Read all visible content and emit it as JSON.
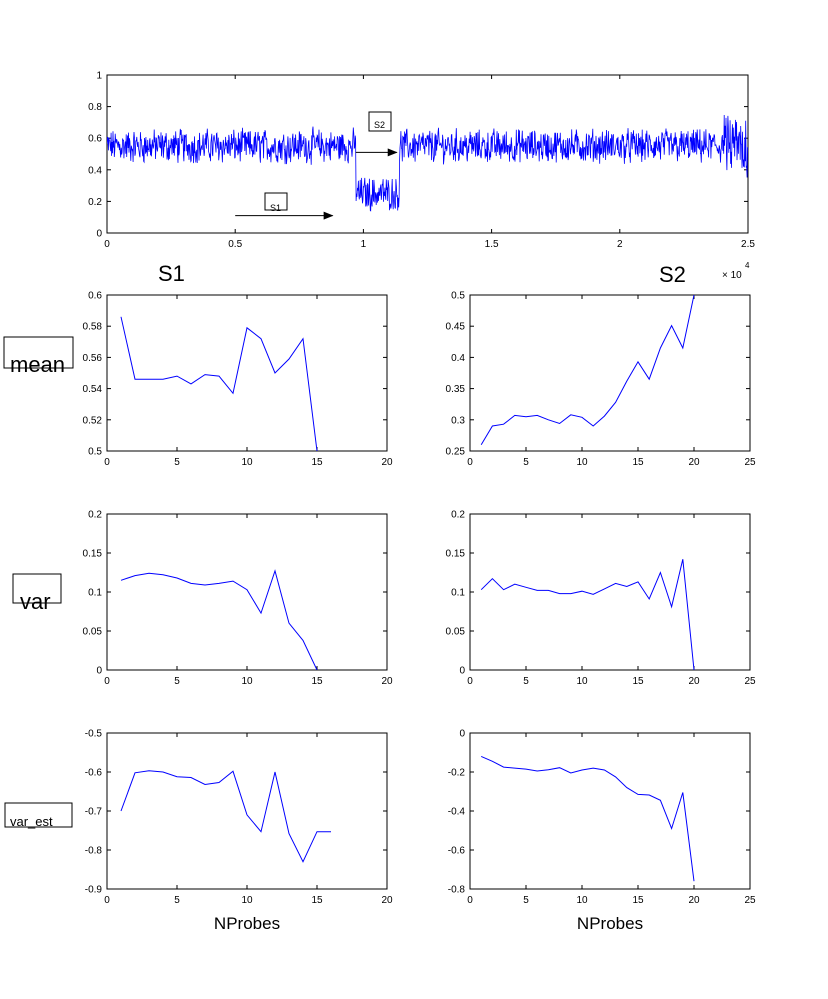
{
  "colors": {
    "line": "#0000ff",
    "axis": "#000000",
    "background": "#ffffff"
  },
  "labels": {
    "s1_title": "S1",
    "s2_title": "S2",
    "row_mean": "mean",
    "row_var": "var",
    "row_var_est": "var_est",
    "top_multiplier": "× 10",
    "top_multiplier_exp": "4",
    "annot_s1": "S1",
    "annot_s2": "S2"
  },
  "chart_data": [
    {
      "id": "top",
      "type": "line",
      "description_hint": "probe signal trace, 25000 samples, noisy around 0.55 with a low segment ~0.25 between 9700 and 11400",
      "xlim": [
        0,
        25000
      ],
      "ylim": [
        0,
        1
      ],
      "xticks": [
        0,
        0.5,
        1,
        1.5,
        2,
        2.5
      ],
      "xtick_labels": [
        "0",
        "0.5",
        "1",
        "1.5",
        "2",
        "2.5"
      ],
      "yticks": [
        0,
        0.2,
        0.4,
        0.6,
        0.8,
        1
      ],
      "ytick_labels": [
        "0",
        "0.2",
        "0.4",
        "0.6",
        "0.8",
        "1"
      ],
      "annotations": [
        {
          "text": "S1",
          "arrow_from": [
            5000,
            0.11
          ],
          "arrow_to": [
            8800,
            0.11
          ]
        },
        {
          "text": "S2",
          "arrow_from": [
            9700,
            0.51
          ],
          "arrow_to": [
            11300,
            0.51
          ]
        }
      ]
    },
    {
      "id": "s1_mean",
      "type": "line",
      "x": [
        1,
        2,
        3,
        4,
        5,
        6,
        7,
        8,
        9,
        10,
        11,
        12,
        13,
        14,
        15
      ],
      "y": [
        0.586,
        0.546,
        0.546,
        0.546,
        0.548,
        0.543,
        0.549,
        0.548,
        0.537,
        0.579,
        0.572,
        0.55,
        0.559,
        0.572,
        0.5
      ],
      "xlim": [
        0,
        20
      ],
      "ylim": [
        0.5,
        0.6
      ],
      "xtick_labels": [
        "0",
        "5",
        "10",
        "15",
        "20"
      ],
      "ytick_labels": [
        "0.5",
        "0.52",
        "0.54",
        "0.56",
        "0.58",
        "0.6"
      ]
    },
    {
      "id": "s2_mean",
      "type": "line",
      "x": [
        1,
        2,
        3,
        4,
        5,
        6,
        7,
        8,
        9,
        10,
        11,
        12,
        13,
        14,
        15,
        16,
        17,
        18,
        19,
        20
      ],
      "y": [
        0.26,
        0.29,
        0.293,
        0.307,
        0.305,
        0.307,
        0.3,
        0.294,
        0.308,
        0.304,
        0.29,
        0.306,
        0.328,
        0.362,
        0.393,
        0.365,
        0.415,
        0.451,
        0.415,
        0.5
      ],
      "xlim": [
        0,
        25
      ],
      "ylim": [
        0.25,
        0.5
      ],
      "xtick_labels": [
        "0",
        "5",
        "10",
        "15",
        "20",
        "25"
      ],
      "ytick_labels": [
        "0.25",
        "0.3",
        "0.35",
        "0.4",
        "0.45",
        "0.5"
      ]
    },
    {
      "id": "s1_var",
      "type": "line",
      "x": [
        1,
        2,
        3,
        4,
        5,
        6,
        7,
        8,
        9,
        10,
        11,
        12,
        13,
        14,
        15
      ],
      "y": [
        0.115,
        0.121,
        0.124,
        0.122,
        0.118,
        0.111,
        0.109,
        0.111,
        0.114,
        0.103,
        0.073,
        0.127,
        0.06,
        0.038,
        0.0
      ],
      "xlim": [
        0,
        20
      ],
      "ylim": [
        0,
        0.2
      ],
      "xtick_labels": [
        "0",
        "5",
        "10",
        "15",
        "20"
      ],
      "ytick_labels": [
        "0",
        "0.05",
        "0.1",
        "0.15",
        "0.2"
      ]
    },
    {
      "id": "s2_var",
      "type": "line",
      "x": [
        1,
        2,
        3,
        4,
        5,
        6,
        7,
        8,
        9,
        10,
        11,
        12,
        13,
        14,
        15,
        16,
        17,
        18,
        19,
        20
      ],
      "y": [
        0.103,
        0.117,
        0.103,
        0.11,
        0.106,
        0.102,
        0.102,
        0.098,
        0.098,
        0.101,
        0.097,
        0.104,
        0.111,
        0.107,
        0.113,
        0.091,
        0.125,
        0.081,
        0.142,
        0.0
      ],
      "xlim": [
        0,
        25
      ],
      "ylim": [
        0,
        0.2
      ],
      "xtick_labels": [
        "0",
        "5",
        "10",
        "15",
        "20",
        "25"
      ],
      "ytick_labels": [
        "0",
        "0.05",
        "0.1",
        "0.15",
        "0.2"
      ]
    },
    {
      "id": "s1_var_est",
      "type": "line",
      "x": [
        1,
        2,
        3,
        4,
        5,
        6,
        7,
        8,
        9,
        10,
        11,
        12,
        13,
        14,
        15,
        16
      ],
      "y": [
        -0.7,
        -0.602,
        -0.597,
        -0.6,
        -0.612,
        -0.614,
        -0.632,
        -0.627,
        -0.598,
        -0.71,
        -0.753,
        -0.6,
        -0.758,
        -0.83,
        -0.753,
        -0.753
      ],
      "xlim": [
        0,
        20
      ],
      "ylim": [
        -0.9,
        -0.5
      ],
      "xtick_labels": [
        "0",
        "5",
        "10",
        "15",
        "20"
      ],
      "ytick_labels": [
        "-0.9",
        "-0.8",
        "-0.7",
        "-0.6",
        "-0.5"
      ],
      "xlabel": "NProbes"
    },
    {
      "id": "s2_var_est",
      "type": "line",
      "x": [
        1,
        2,
        3,
        4,
        5,
        6,
        7,
        8,
        9,
        10,
        11,
        12,
        13,
        14,
        15,
        16,
        17,
        18,
        19,
        20
      ],
      "y": [
        -0.12,
        -0.145,
        -0.175,
        -0.18,
        -0.185,
        -0.195,
        -0.188,
        -0.178,
        -0.205,
        -0.19,
        -0.18,
        -0.19,
        -0.225,
        -0.28,
        -0.315,
        -0.318,
        -0.345,
        -0.49,
        -0.305,
        -0.76
      ],
      "xlim": [
        0,
        25
      ],
      "ylim": [
        -0.8,
        0
      ],
      "xtick_labels": [
        "0",
        "5",
        "10",
        "15",
        "20",
        "25"
      ],
      "ytick_labels": [
        "-0.8",
        "-0.6",
        "-0.4",
        "-0.2",
        "0"
      ],
      "xlabel": "NProbes"
    }
  ]
}
